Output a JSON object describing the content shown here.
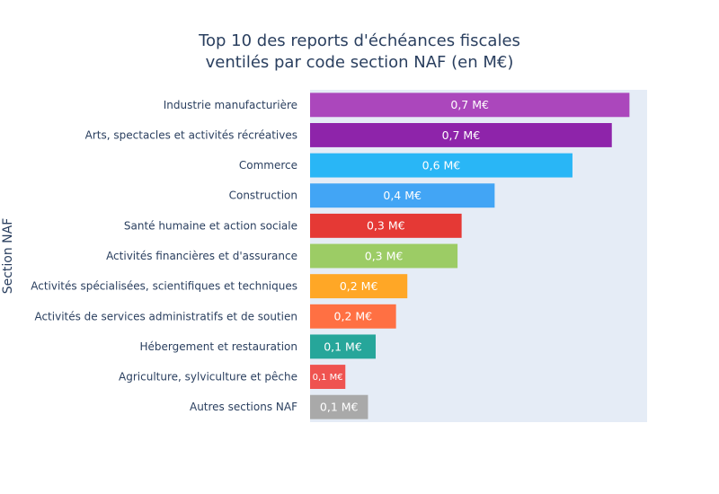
{
  "chart_data": {
    "type": "bar",
    "orientation": "horizontal",
    "title_line1": "Top 10 des reports d'échéances fiscales",
    "title_line2": "ventilés par code section NAF (en M€)",
    "xlabel": "",
    "ylabel": "Section NAF",
    "xlim": [
      0,
      0.745
    ],
    "grid": false,
    "categories": [
      "Industrie manufacturière",
      "Arts, spectacles et activités récréatives",
      "Commerce",
      "Construction",
      "Santé humaine et action sociale",
      "Activités financières et d'assurance",
      "Activités spécialisées, scientifiques et techniques",
      "Activités de services administratifs et de soutien",
      "Hébergement et restauration",
      "Agriculture, sylviculture et pêche",
      "Autres sections NAF"
    ],
    "values": [
      0.706,
      0.667,
      0.58,
      0.408,
      0.335,
      0.326,
      0.215,
      0.19,
      0.145,
      0.078,
      0.128
    ],
    "data_labels": [
      "0,7 M€",
      "0,7 M€",
      "0,6 M€",
      "0,4 M€",
      "0,3 M€",
      "0,3 M€",
      "0,2 M€",
      "0,2 M€",
      "0,1 M€",
      "0,1 M€",
      "0,1 M€"
    ],
    "colors": [
      "#ab47bc",
      "#8e24aa",
      "#29b6f6",
      "#42a5f5",
      "#e53935",
      "#9ccc65",
      "#ffa726",
      "#ff7043",
      "#26a69a",
      "#ef5350",
      "#a9a9a9"
    ],
    "plot_background": "#e5ecf6",
    "tick_color": "#2a3f5f"
  }
}
